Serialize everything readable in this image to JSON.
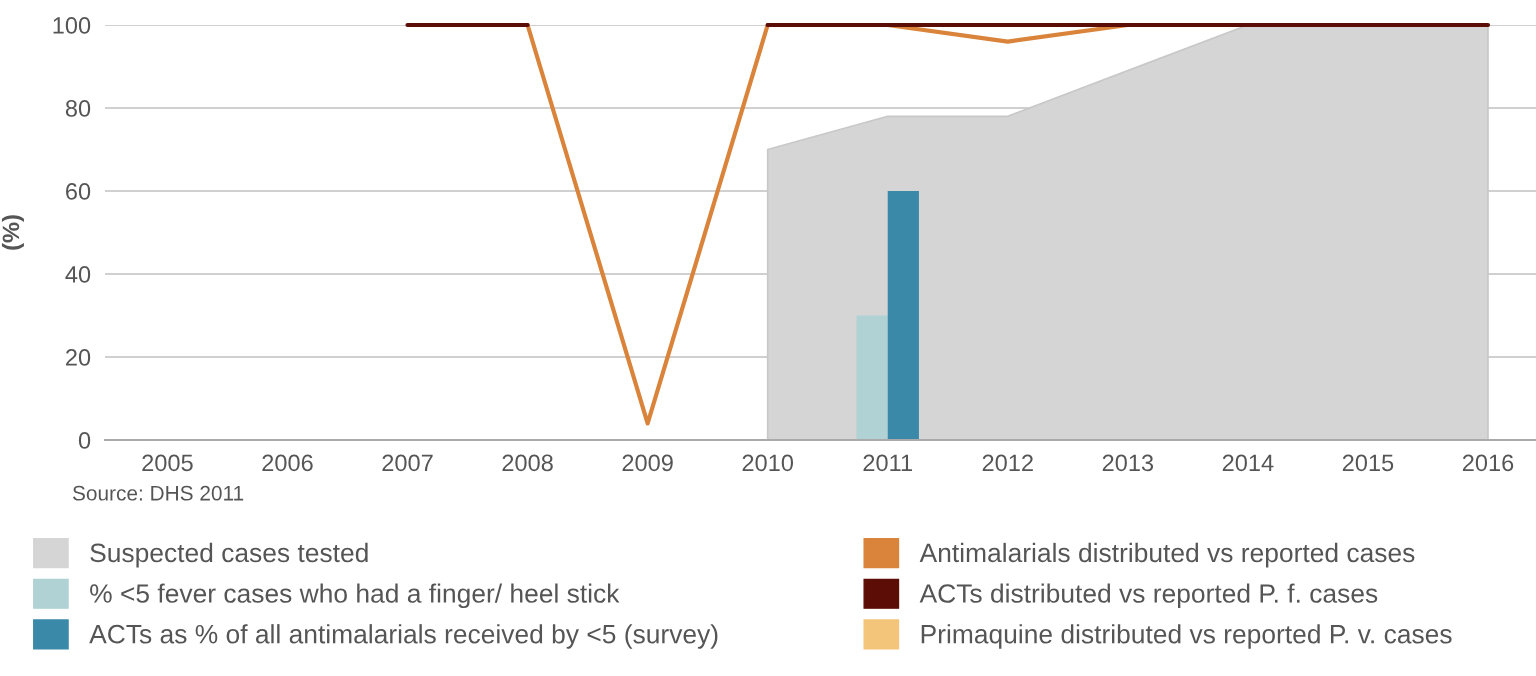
{
  "chart_data": {
    "type": "line",
    "ylabel": "(%)",
    "categories": [
      "2005",
      "2006",
      "2007",
      "2008",
      "2009",
      "2010",
      "2011",
      "2012",
      "2013",
      "2014",
      "2015",
      "2016"
    ],
    "series": [
      {
        "name": "Suspected cases tested",
        "type": "area",
        "color": "#d5d5d5",
        "values": [
          null,
          null,
          null,
          null,
          null,
          70,
          78,
          78,
          89,
          100,
          100,
          100
        ]
      },
      {
        "name": "% <5 fever cases who had a finger/ heel stick",
        "type": "bar",
        "color": "#b0d2d4",
        "values": [
          null,
          null,
          null,
          null,
          null,
          null,
          30,
          null,
          null,
          null,
          null,
          null
        ]
      },
      {
        "name": "ACTs as % of all antimalarials received by <5 (survey)",
        "type": "bar",
        "color": "#3a89a8",
        "values": [
          null,
          null,
          null,
          null,
          null,
          null,
          60,
          null,
          null,
          null,
          null,
          null
        ]
      },
      {
        "name": "Antimalarials distributed vs reported cases",
        "color": "#d9843a",
        "values": [
          null,
          null,
          null,
          100,
          4,
          100,
          100,
          96,
          100,
          null,
          null,
          null
        ]
      },
      {
        "name": "ACTs distributed vs reported P. f. cases",
        "color": "#5c0d05",
        "values": [
          null,
          null,
          100,
          100,
          null,
          100,
          100,
          100,
          100,
          100,
          100,
          100
        ]
      },
      {
        "name": "Primaquine distributed vs reported P. v. cases",
        "color": "#f3c57a",
        "values": [
          null,
          null,
          null,
          null,
          null,
          null,
          null,
          null,
          null,
          null,
          null,
          null
        ]
      }
    ],
    "ylim": [
      0,
      100
    ],
    "yticks": [
      0,
      20,
      40,
      60,
      80,
      100
    ],
    "grid": "y",
    "legend": "bottom",
    "annotations": [
      "Source: DHS 2011"
    ]
  }
}
